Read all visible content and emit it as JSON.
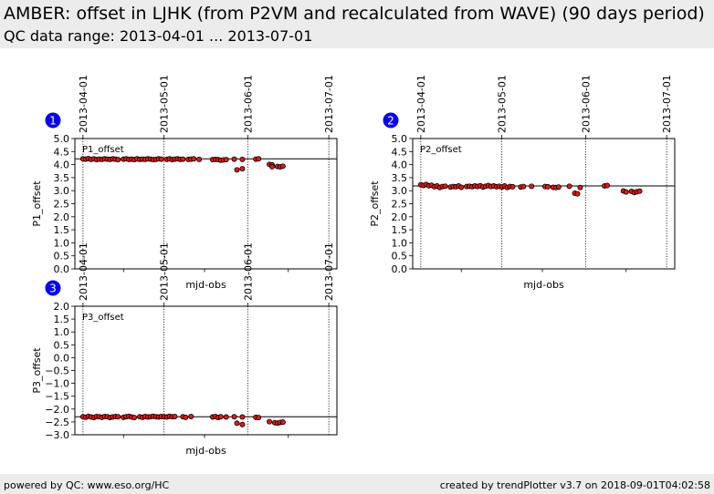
{
  "header": {
    "title": "AMBER: offset in LJHK (from P2VM and recalculated from WAVE) (90 days period)",
    "subtitle": "QC data range: 2013-04-01 ... 2013-07-01"
  },
  "footer": {
    "left": "powered by QC: www.eso.org/HC",
    "right": "created by trendPlotter v3.7 on 2018-09-01T04:02:58"
  },
  "colors": {
    "marker_fill": "#dd1c1c",
    "marker_edge": "#000000",
    "badge": "#0a00f0"
  },
  "chart_data": [
    {
      "type": "scatter",
      "badge": "1",
      "inner_label": "P1_offset",
      "xlabel": "mjd-obs",
      "ylabel": "P1_offset",
      "x_date_ticks": [
        "2013-04-01",
        "2013-05-01",
        "2013-06-01",
        "2013-07-01"
      ],
      "xlim": [
        "2013-03-29",
        "2013-07-04"
      ],
      "ylim": [
        0.0,
        5.0
      ],
      "y_ticks": [
        "0.0",
        "0.5",
        "1.0",
        "1.5",
        "2.0",
        "2.5",
        "3.0",
        "3.5",
        "4.0",
        "4.5",
        "5.0"
      ],
      "reference_line": 4.22,
      "points": [
        [
          "2013-04-01",
          4.22
        ],
        [
          "2013-04-02",
          4.21
        ],
        [
          "2013-04-03",
          4.23
        ],
        [
          "2013-04-04",
          4.2
        ],
        [
          "2013-04-05",
          4.22
        ],
        [
          "2013-04-06",
          4.19
        ],
        [
          "2013-04-07",
          4.21
        ],
        [
          "2013-04-08",
          4.2
        ],
        [
          "2013-04-09",
          4.22
        ],
        [
          "2013-04-10",
          4.21
        ],
        [
          "2013-04-11",
          4.2
        ],
        [
          "2013-04-12",
          4.22
        ],
        [
          "2013-04-13",
          4.21
        ],
        [
          "2013-04-14",
          4.19
        ],
        [
          "2013-04-16",
          4.21
        ],
        [
          "2013-04-17",
          4.22
        ],
        [
          "2013-04-18",
          4.2
        ],
        [
          "2013-04-19",
          4.21
        ],
        [
          "2013-04-20",
          4.19
        ],
        [
          "2013-04-21",
          4.22
        ],
        [
          "2013-04-22",
          4.2
        ],
        [
          "2013-04-23",
          4.21
        ],
        [
          "2013-04-24",
          4.2
        ],
        [
          "2013-04-25",
          4.22
        ],
        [
          "2013-04-26",
          4.21
        ],
        [
          "2013-04-27",
          4.19
        ],
        [
          "2013-04-28",
          4.2
        ],
        [
          "2013-04-29",
          4.22
        ],
        [
          "2013-04-30",
          4.21
        ],
        [
          "2013-05-02",
          4.2
        ],
        [
          "2013-05-03",
          4.22
        ],
        [
          "2013-05-04",
          4.19
        ],
        [
          "2013-05-05",
          4.21
        ],
        [
          "2013-05-06",
          4.22
        ],
        [
          "2013-05-07",
          4.2
        ],
        [
          "2013-05-08",
          4.21
        ],
        [
          "2013-05-10",
          4.2
        ],
        [
          "2013-05-11",
          4.21
        ],
        [
          "2013-05-12",
          4.22
        ],
        [
          "2013-05-14",
          4.2
        ],
        [
          "2013-05-19",
          4.19
        ],
        [
          "2013-05-20",
          4.2
        ],
        [
          "2013-05-21",
          4.19
        ],
        [
          "2013-05-22",
          4.17
        ],
        [
          "2013-05-23",
          4.18
        ],
        [
          "2013-05-24",
          4.19
        ],
        [
          "2013-05-27",
          4.21
        ],
        [
          "2013-05-28",
          3.8
        ],
        [
          "2013-05-30",
          4.2
        ],
        [
          "2013-05-30",
          3.84
        ],
        [
          "2013-06-04",
          4.21
        ],
        [
          "2013-06-05",
          4.22
        ],
        [
          "2013-06-09",
          4.01
        ],
        [
          "2013-06-10",
          3.99
        ],
        [
          "2013-06-10",
          3.92
        ],
        [
          "2013-06-12",
          3.93
        ],
        [
          "2013-06-13",
          3.91
        ],
        [
          "2013-06-14",
          3.94
        ]
      ]
    },
    {
      "type": "scatter",
      "badge": "2",
      "inner_label": "P2_offset",
      "xlabel": "mjd-obs",
      "ylabel": "P2_offset",
      "x_date_ticks": [
        "2013-04-01",
        "2013-05-01",
        "2013-06-01",
        "2013-07-01"
      ],
      "xlim": [
        "2013-03-29",
        "2013-07-04"
      ],
      "ylim": [
        0.0,
        5.0
      ],
      "y_ticks": [
        "0.0",
        "0.5",
        "1.0",
        "1.5",
        "2.0",
        "2.5",
        "3.0",
        "3.5",
        "4.0",
        "4.5",
        "5.0"
      ],
      "reference_line": 3.18,
      "points": [
        [
          "2013-04-01",
          3.23
        ],
        [
          "2013-04-02",
          3.2
        ],
        [
          "2013-04-03",
          3.24
        ],
        [
          "2013-04-04",
          3.19
        ],
        [
          "2013-04-05",
          3.21
        ],
        [
          "2013-04-06",
          3.15
        ],
        [
          "2013-04-07",
          3.18
        ],
        [
          "2013-04-08",
          3.12
        ],
        [
          "2013-04-09",
          3.16
        ],
        [
          "2013-04-10",
          3.17
        ],
        [
          "2013-04-12",
          3.14
        ],
        [
          "2013-04-13",
          3.16
        ],
        [
          "2013-04-14",
          3.15
        ],
        [
          "2013-04-15",
          3.18
        ],
        [
          "2013-04-16",
          3.13
        ],
        [
          "2013-04-18",
          3.16
        ],
        [
          "2013-04-19",
          3.17
        ],
        [
          "2013-04-20",
          3.15
        ],
        [
          "2013-04-21",
          3.18
        ],
        [
          "2013-04-22",
          3.16
        ],
        [
          "2013-04-23",
          3.19
        ],
        [
          "2013-04-24",
          3.14
        ],
        [
          "2013-04-25",
          3.17
        ],
        [
          "2013-04-26",
          3.2
        ],
        [
          "2013-04-27",
          3.16
        ],
        [
          "2013-04-28",
          3.18
        ],
        [
          "2013-04-29",
          3.15
        ],
        [
          "2013-04-30",
          3.17
        ],
        [
          "2013-05-01",
          3.14
        ],
        [
          "2013-05-02",
          3.18
        ],
        [
          "2013-05-03",
          3.12
        ],
        [
          "2013-05-04",
          3.16
        ],
        [
          "2013-05-05",
          3.15
        ],
        [
          "2013-05-08",
          3.14
        ],
        [
          "2013-05-09",
          3.16
        ],
        [
          "2013-05-12",
          3.17
        ],
        [
          "2013-05-17",
          3.16
        ],
        [
          "2013-05-18",
          3.15
        ],
        [
          "2013-05-20",
          3.13
        ],
        [
          "2013-05-21",
          3.12
        ],
        [
          "2013-05-22",
          3.14
        ],
        [
          "2013-05-26",
          3.17
        ],
        [
          "2013-05-28",
          2.9
        ],
        [
          "2013-05-29",
          2.88
        ],
        [
          "2013-05-30",
          3.12
        ],
        [
          "2013-06-08",
          3.18
        ],
        [
          "2013-06-09",
          3.2
        ],
        [
          "2013-06-15",
          2.99
        ],
        [
          "2013-06-16",
          2.95
        ],
        [
          "2013-06-18",
          2.97
        ],
        [
          "2013-06-19",
          2.93
        ],
        [
          "2013-06-20",
          2.96
        ],
        [
          "2013-06-21",
          2.98
        ]
      ]
    },
    {
      "type": "scatter",
      "badge": "3",
      "inner_label": "P3_offset",
      "xlabel": "mjd-obs",
      "ylabel": "P3_offset",
      "x_date_ticks": [
        "2013-04-01",
        "2013-05-01",
        "2013-06-01",
        "2013-07-01"
      ],
      "xlim": [
        "2013-03-29",
        "2013-07-04"
      ],
      "ylim": [
        -3.0,
        2.0
      ],
      "y_ticks": [
        "−3.0",
        "−2.5",
        "−2.0",
        "−1.5",
        "−1.0",
        "−0.5",
        "0.0",
        "0.5",
        "1.0",
        "1.5",
        "2.0"
      ],
      "reference_line": -2.3,
      "points": [
        [
          "2013-04-01",
          -2.3
        ],
        [
          "2013-04-02",
          -2.32
        ],
        [
          "2013-04-03",
          -2.28
        ],
        [
          "2013-04-04",
          -2.31
        ],
        [
          "2013-04-05",
          -2.33
        ],
        [
          "2013-04-06",
          -2.29
        ],
        [
          "2013-04-07",
          -2.3
        ],
        [
          "2013-04-08",
          -2.32
        ],
        [
          "2013-04-09",
          -2.29
        ],
        [
          "2013-04-10",
          -2.3
        ],
        [
          "2013-04-11",
          -2.33
        ],
        [
          "2013-04-12",
          -2.31
        ],
        [
          "2013-04-13",
          -2.29
        ],
        [
          "2013-04-14",
          -2.3
        ],
        [
          "2013-04-16",
          -2.32
        ],
        [
          "2013-04-17",
          -2.3
        ],
        [
          "2013-04-18",
          -2.28
        ],
        [
          "2013-04-19",
          -2.31
        ],
        [
          "2013-04-20",
          -2.33
        ],
        [
          "2013-04-22",
          -2.3
        ],
        [
          "2013-04-23",
          -2.32
        ],
        [
          "2013-04-24",
          -2.29
        ],
        [
          "2013-04-25",
          -2.31
        ],
        [
          "2013-04-26",
          -2.3
        ],
        [
          "2013-04-27",
          -2.28
        ],
        [
          "2013-04-28",
          -2.3
        ],
        [
          "2013-04-29",
          -2.31
        ],
        [
          "2013-04-30",
          -2.29
        ],
        [
          "2013-05-01",
          -2.3
        ],
        [
          "2013-05-02",
          -2.31
        ],
        [
          "2013-05-03",
          -2.28
        ],
        [
          "2013-05-04",
          -2.3
        ],
        [
          "2013-05-05",
          -2.29
        ],
        [
          "2013-05-08",
          -2.3
        ],
        [
          "2013-05-09",
          -2.32
        ],
        [
          "2013-05-11",
          -2.29
        ],
        [
          "2013-05-19",
          -2.31
        ],
        [
          "2013-05-20",
          -2.29
        ],
        [
          "2013-05-21",
          -2.33
        ],
        [
          "2013-05-22",
          -2.3
        ],
        [
          "2013-05-24",
          -2.31
        ],
        [
          "2013-05-27",
          -2.3
        ],
        [
          "2013-05-28",
          -2.55
        ],
        [
          "2013-05-30",
          -2.31
        ],
        [
          "2013-05-30",
          -2.6
        ],
        [
          "2013-06-04",
          -2.32
        ],
        [
          "2013-06-05",
          -2.33
        ],
        [
          "2013-06-09",
          -2.49
        ],
        [
          "2013-06-11",
          -2.53
        ],
        [
          "2013-06-12",
          -2.55
        ],
        [
          "2013-06-13",
          -2.52
        ],
        [
          "2013-06-14",
          -2.51
        ]
      ]
    }
  ]
}
